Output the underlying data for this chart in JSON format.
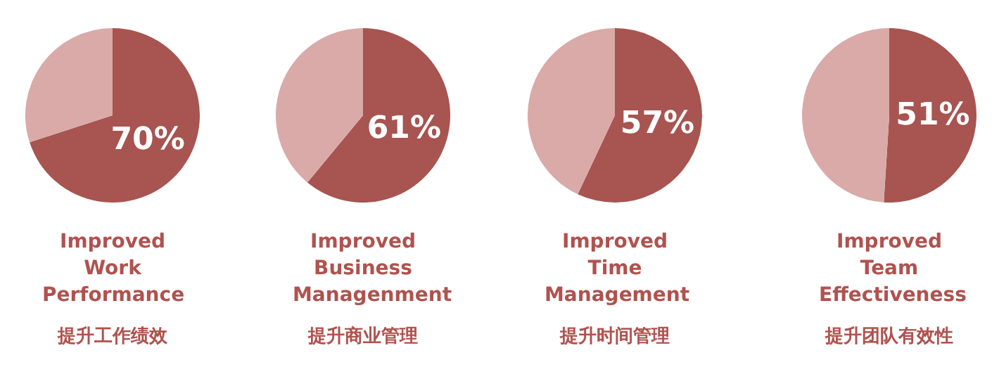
{
  "chart_data": [
    {
      "type": "pie",
      "title": "Improved Work Performance",
      "subtitle": "提升工作绩效",
      "categories": [
        null,
        null
      ],
      "values": [
        70,
        30
      ],
      "colors": [
        "#a85450",
        "#d9aaa8"
      ],
      "value_labels": [
        "70%",
        null
      ]
    },
    {
      "type": "pie",
      "title": "Improved Business Managenment",
      "subtitle": "提升商业管理",
      "categories": [
        null,
        null
      ],
      "values": [
        61,
        39
      ],
      "colors": [
        "#a85450",
        "#d9aaa8"
      ],
      "value_labels": [
        "61%",
        null
      ]
    },
    {
      "type": "pie",
      "title": "Improved Time Management",
      "subtitle": "提升时间管理",
      "categories": [
        null,
        null
      ],
      "values": [
        57,
        43
      ],
      "colors": [
        "#a85450",
        "#d9aaa8"
      ],
      "value_labels": [
        "57%",
        null
      ]
    },
    {
      "type": "pie",
      "title": "Improved Team Effectiveness",
      "subtitle": "提升团队有效性",
      "categories": [
        null,
        null
      ],
      "values": [
        51,
        49
      ],
      "colors": [
        "#a85450",
        "#d9aaa8"
      ],
      "value_labels": [
        "51%",
        null
      ]
    }
  ]
}
